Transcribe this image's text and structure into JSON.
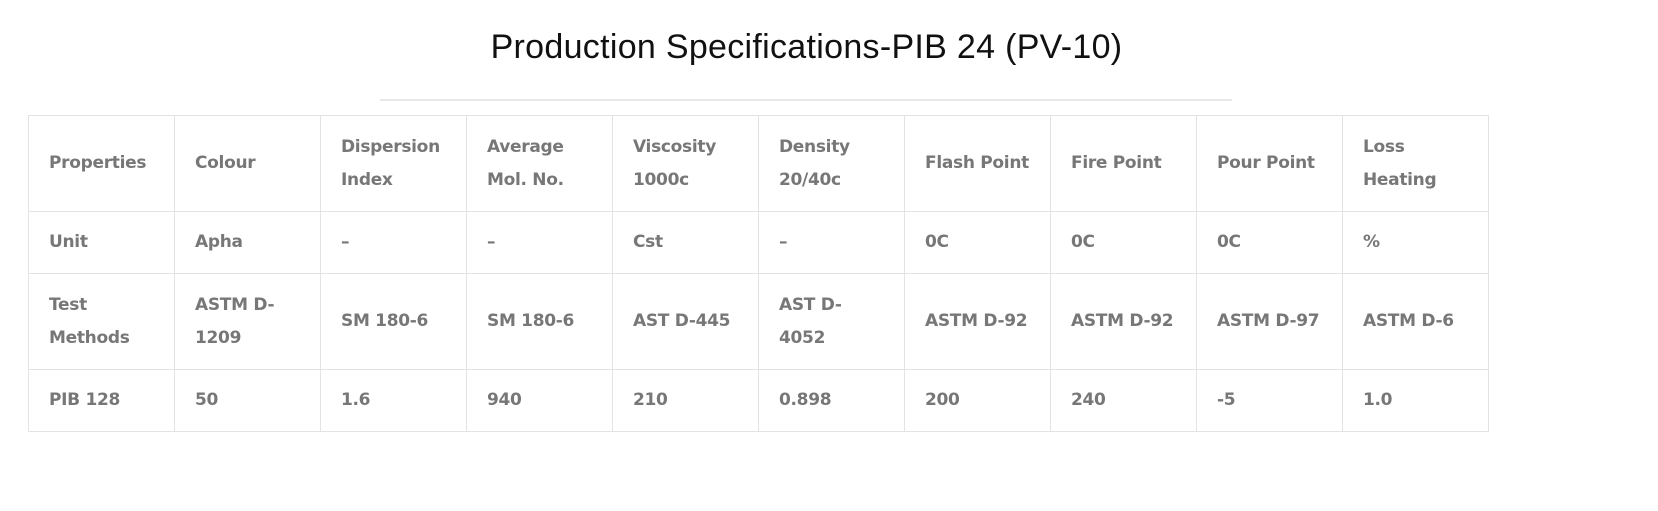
{
  "title": "Production Specifications-PIB 24 (PV-10)",
  "table": {
    "rows": [
      [
        "Properties",
        "Colour",
        "Dispersion Index",
        "Average Mol. No.",
        "Viscosity 1000c",
        "Density 20/40c",
        "Flash Point",
        "Fire Point",
        "Pour Point",
        "Loss Heating"
      ],
      [
        "Unit",
        "Apha",
        "–",
        "–",
        "Cst",
        "–",
        "0C",
        "0C",
        "0C",
        "%"
      ],
      [
        "Test Methods",
        "ASTM D-1209",
        "SM 180-6",
        "SM 180-6",
        "AST D-445",
        "AST D-4052",
        "ASTM D-92",
        "ASTM D-92",
        "ASTM D-97",
        "ASTM D-6"
      ],
      [
        "PIB 128",
        "50",
        "1.6",
        "940",
        "210",
        "0.898",
        "200",
        "240",
        "-5",
        "1.0"
      ]
    ]
  }
}
